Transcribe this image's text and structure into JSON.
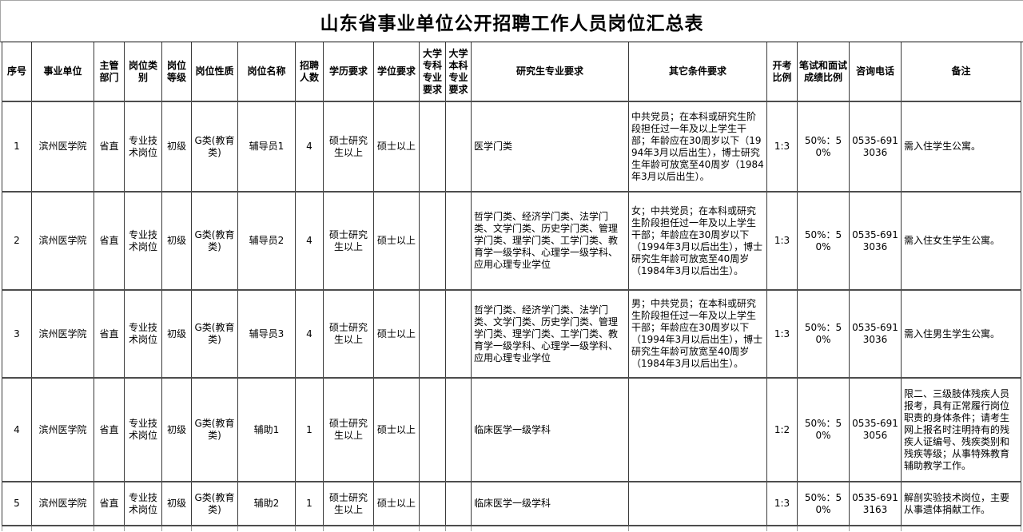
{
  "title": "山东省事业单位公开招聘工作人员岗位汇总表",
  "colors": {
    "background": "#ffffff",
    "text": "#000000",
    "table_border": "#3a3a3a",
    "outer_gridline": "#a6a6a6"
  },
  "table": {
    "columns": [
      {
        "key": "seq",
        "label": "序号"
      },
      {
        "key": "unit",
        "label": "事业单位"
      },
      {
        "key": "dept",
        "label": "主管部门"
      },
      {
        "key": "category",
        "label": "岗位类别"
      },
      {
        "key": "level",
        "label": "岗位等级"
      },
      {
        "key": "nature",
        "label": "岗位性质"
      },
      {
        "key": "name",
        "label": "岗位名称"
      },
      {
        "key": "count",
        "label": "招聘人数"
      },
      {
        "key": "edu",
        "label": "学历要求"
      },
      {
        "key": "degree",
        "label": "学位要求"
      },
      {
        "key": "zhuanke",
        "label": "大学专科专业要求"
      },
      {
        "key": "benke",
        "label": "大学本科专业要求"
      },
      {
        "key": "grad",
        "label": "研究生专业要求"
      },
      {
        "key": "other",
        "label": "其它条件要求"
      },
      {
        "key": "ratio",
        "label": "开考比例"
      },
      {
        "key": "score",
        "label": "笔试和面试成绩比例"
      },
      {
        "key": "phone",
        "label": "咨询电话"
      },
      {
        "key": "note",
        "label": "备注"
      }
    ],
    "rows": [
      {
        "seq": "1",
        "unit": "滨州医学院",
        "dept": "省直",
        "category": "专业技术岗位",
        "level": "初级",
        "nature": "G类(教育类)",
        "name": "辅导员1",
        "count": "4",
        "edu": "硕士研究生以上",
        "degree": "硕士以上",
        "zhuanke": "",
        "benke": "",
        "grad": "医学门类",
        "other": "中共党员；在本科或研究生阶段担任过一年及以上学生干部；年龄应在30周岁以下（1994年3月以后出生），博士研究生年龄可放宽至40周岁（1984年3月以后出生）。",
        "ratio": "1:3",
        "score": "50%：50%",
        "phone": "0535-6913036",
        "note": "需入住学生公寓。"
      },
      {
        "seq": "2",
        "unit": "滨州医学院",
        "dept": "省直",
        "category": "专业技术岗位",
        "level": "初级",
        "nature": "G类(教育类)",
        "name": "辅导员2",
        "count": "4",
        "edu": "硕士研究生以上",
        "degree": "硕士以上",
        "zhuanke": "",
        "benke": "",
        "grad": "哲学门类、经济学门类、法学门类、文学门类、历史学门类、管理学门类、理学门类、工学门类、教育学一级学科、心理学一级学科、应用心理专业学位",
        "other": "女；中共党员；在本科或研究生阶段担任过一年及以上学生干部；年龄应在30周岁以下（1994年3月以后出生），博士研究生年龄可放宽至40周岁（1984年3月以后出生）。",
        "ratio": "1:3",
        "score": "50%：50%",
        "phone": "0535-6913036",
        "note": "需入住女生学生公寓。"
      },
      {
        "seq": "3",
        "unit": "滨州医学院",
        "dept": "省直",
        "category": "专业技术岗位",
        "level": "初级",
        "nature": "G类(教育类)",
        "name": "辅导员3",
        "count": "4",
        "edu": "硕士研究生以上",
        "degree": "硕士以上",
        "zhuanke": "",
        "benke": "",
        "grad": "哲学门类、经济学门类、法学门类、文学门类、历史学门类、管理学门类、理学门类、工学门类、教育学一级学科、心理学一级学科、应用心理专业学位",
        "other": "男；中共党员；在本科或研究生阶段担任过一年及以上学生干部；年龄应在30周岁以下（1994年3月以后出生），博士研究生年龄可放宽至40周岁（1984年3月以后出生）。",
        "ratio": "1:3",
        "score": "50%：50%",
        "phone": "0535-6913036",
        "note": "需入住男生学生公寓。"
      },
      {
        "seq": "4",
        "unit": "滨州医学院",
        "dept": "省直",
        "category": "专业技术岗位",
        "level": "初级",
        "nature": "G类(教育类)",
        "name": "辅助1",
        "count": "1",
        "edu": "硕士研究生以上",
        "degree": "硕士以上",
        "zhuanke": "",
        "benke": "",
        "grad": "临床医学一级学科",
        "other": "",
        "ratio": "1:2",
        "score": "50%：50%",
        "phone": "0535-6913056",
        "note": "限二、三级肢体残疾人员报考，具有正常履行岗位职责的身体条件；请考生网上报名时注明持有的残疾人证编号、残疾类别和残疾等级；从事特殊教育辅助教学工作。"
      },
      {
        "seq": "5",
        "unit": "滨州医学院",
        "dept": "省直",
        "category": "专业技术岗位",
        "level": "初级",
        "nature": "G类(教育类)",
        "name": "辅助2",
        "count": "1",
        "edu": "硕士研究生以上",
        "degree": "硕士以上",
        "zhuanke": "",
        "benke": "",
        "grad": "临床医学一级学科",
        "other": "",
        "ratio": "1:3",
        "score": "50%：50%",
        "phone": "0535-6913163",
        "note": "解剖实验技术岗位，主要从事遗体捐献工作。"
      }
    ]
  }
}
